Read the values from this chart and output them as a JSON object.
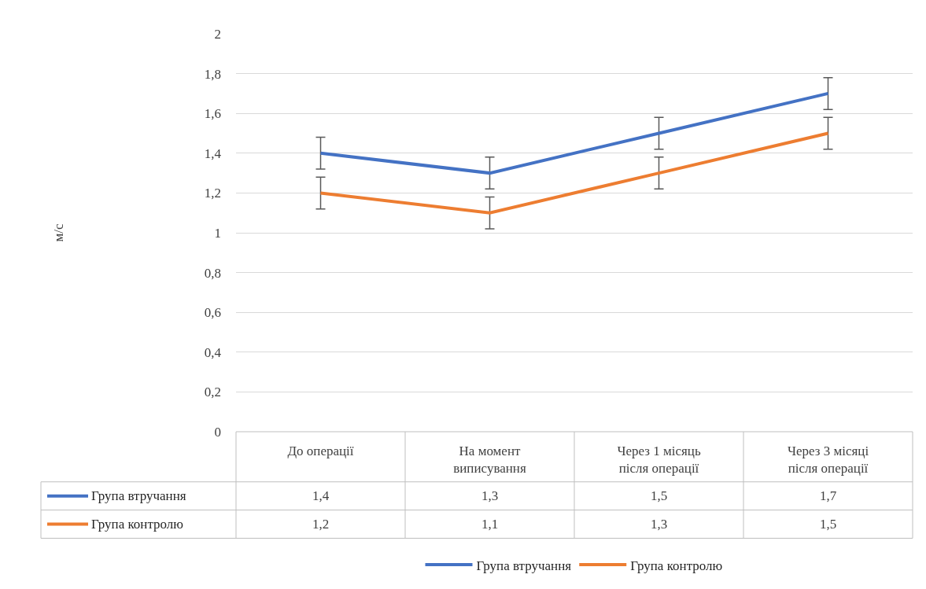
{
  "chart_data": {
    "type": "line",
    "annotations": [
      "м/с"
    ],
    "categories": [
      "До операції",
      "На момент виписування",
      "Через 1 місяць після операції",
      "Через 3 місяці після операції"
    ],
    "series": [
      {
        "name": "Група втручання",
        "color": "#4472c4",
        "values": [
          1.4,
          1.3,
          1.5,
          1.7
        ],
        "errors": [
          0.08,
          0.08,
          0.08,
          0.08
        ],
        "value_labels": [
          "1,4",
          "1,3",
          "1,5",
          "1,7"
        ]
      },
      {
        "name": "Група контролю",
        "color": "#ed7d31",
        "values": [
          1.2,
          1.1,
          1.3,
          1.5
        ],
        "errors": [
          0.08,
          0.08,
          0.08,
          0.08
        ],
        "value_labels": [
          "1,2",
          "1,1",
          "1,3",
          "1,5"
        ]
      }
    ],
    "ylim": [
      0,
      2
    ],
    "yticks": [
      {
        "value": 0,
        "label": "0"
      },
      {
        "value": 0.2,
        "label": "0,2"
      },
      {
        "value": 0.4,
        "label": "0,4"
      },
      {
        "value": 0.6,
        "label": "0,6"
      },
      {
        "value": 0.8,
        "label": "0,8"
      },
      {
        "value": 1,
        "label": "1"
      },
      {
        "value": 1.2,
        "label": "1,2"
      },
      {
        "value": 1.4,
        "label": "1,4"
      },
      {
        "value": 1.6,
        "label": "1,6"
      },
      {
        "value": 1.8,
        "label": "1,8"
      },
      {
        "value": 2,
        "label": "2"
      }
    ],
    "grid": "y",
    "legend": "bottom",
    "marker": "none",
    "line_style": "solid"
  }
}
